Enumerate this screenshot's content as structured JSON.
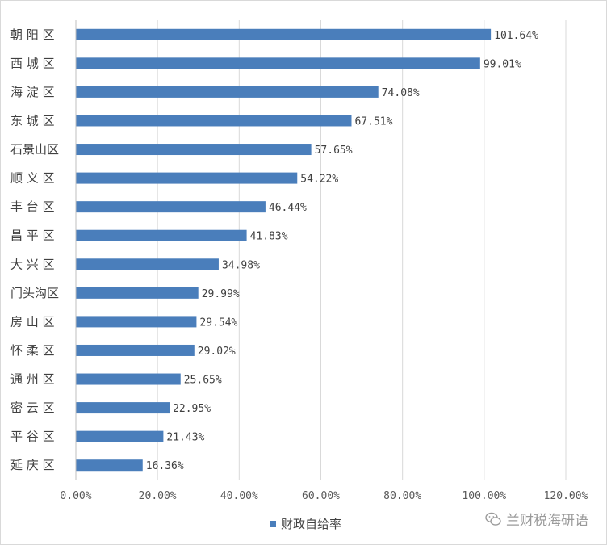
{
  "chart_data": {
    "type": "bar",
    "orientation": "horizontal",
    "categories": [
      "朝 阳 区",
      "西 城 区",
      "海 淀 区",
      "东 城 区",
      "石景山区",
      "顺 义 区",
      "丰 台 区",
      "昌 平 区",
      "大 兴 区",
      "门头沟区",
      "房 山 区",
      "怀 柔 区",
      "通 州 区",
      "密 云 区",
      "平 谷 区",
      "延 庆 区"
    ],
    "series": [
      {
        "name": "财政自给率",
        "values": [
          101.64,
          99.01,
          74.08,
          67.51,
          57.65,
          54.22,
          46.44,
          41.83,
          34.98,
          29.99,
          29.54,
          29.02,
          25.65,
          22.95,
          21.43,
          16.36
        ],
        "labels": [
          "101.64%",
          "99.01%",
          "74.08%",
          "67.51%",
          "57.65%",
          "54.22%",
          "46.44%",
          "41.83%",
          "34.98%",
          "29.99%",
          "29.54%",
          "29.02%",
          "25.65%",
          "22.95%",
          "21.43%",
          "16.36%"
        ]
      }
    ],
    "xticks": [
      "0.00%",
      "20.00%",
      "40.00%",
      "60.00%",
      "80.00%",
      "100.00%",
      "120.00%"
    ],
    "xlim": [
      0,
      120
    ],
    "grid": "vertical",
    "legend": "bottom",
    "color": "#4a7ebb"
  },
  "watermark": {
    "text": "兰财税海研语",
    "icon": "wechat-icon"
  }
}
